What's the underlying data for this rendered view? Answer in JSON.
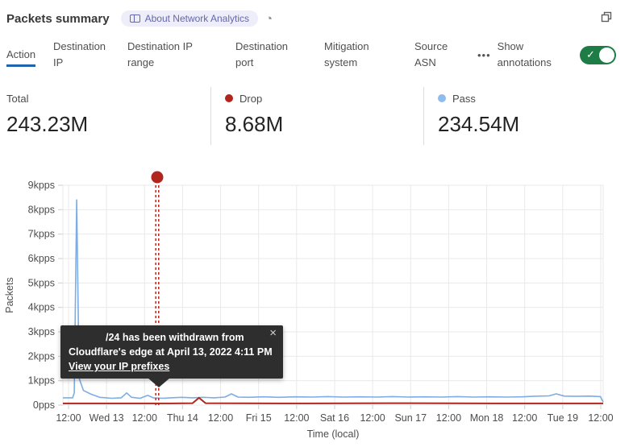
{
  "header": {
    "title": "Packets summary",
    "badge_label": "About Network Analytics",
    "pie_icon": "◔"
  },
  "tabs": {
    "items": [
      {
        "label": "Action",
        "active": true
      },
      {
        "label": "Destination IP",
        "active": false
      },
      {
        "label": "Destination IP range",
        "active": false
      },
      {
        "label": "Destination port",
        "active": false
      },
      {
        "label": "Mitigation system",
        "active": false
      },
      {
        "label": "Source ASN",
        "active": false
      }
    ],
    "more_label": "•••",
    "annotations_label": "Show annotations",
    "annotations_toggle_on": true,
    "toggle_color": "#1e7d46",
    "check_icon": "✓"
  },
  "stats": [
    {
      "label": "Total",
      "value": "243.23M",
      "dot_color": null
    },
    {
      "label": "Drop",
      "value": "8.68M",
      "dot_color": "#b2251c"
    },
    {
      "label": "Pass",
      "value": "234.54M",
      "dot_color": "#8fbced"
    }
  ],
  "tooltip": {
    "line1": "/24 has been withdrawn from",
    "line2": "Cloudflare's edge at April 13, 2022 4:11 PM",
    "link": "View your IP prefixes",
    "close_icon": "×"
  },
  "chart_data": {
    "type": "line",
    "ylabel": "Packets",
    "xlabel": "Time (local)",
    "unit": "kpps",
    "y_ticks": [
      "0pps",
      "1kpps",
      "2kpps",
      "3kpps",
      "4kpps",
      "5kpps",
      "6kpps",
      "7kpps",
      "8kpps",
      "9kpps"
    ],
    "y_max_kpps": 9,
    "x_ticks": [
      "12:00",
      "Wed 13",
      "12:00",
      "Thu 14",
      "12:00",
      "Fri 15",
      "12:00",
      "Sat 16",
      "12:00",
      "Sun 17",
      "12:00",
      "Mon 18",
      "12:00",
      "Tue 19",
      "12:00"
    ],
    "grid": true,
    "grid_color": "#e9e9e9",
    "axis_text_color": "#4d4d4d",
    "series": [
      {
        "name": "Pass",
        "color": "#7dade4",
        "width": 1.6,
        "points": [
          [
            0,
            0.3
          ],
          [
            0.018,
            0.3
          ],
          [
            0.021,
            0.5
          ],
          [
            0.0255,
            8.4
          ],
          [
            0.03,
            1.1
          ],
          [
            0.038,
            0.6
          ],
          [
            0.052,
            0.45
          ],
          [
            0.068,
            0.32
          ],
          [
            0.09,
            0.28
          ],
          [
            0.108,
            0.3
          ],
          [
            0.118,
            0.5
          ],
          [
            0.127,
            0.32
          ],
          [
            0.143,
            0.28
          ],
          [
            0.157,
            0.4
          ],
          [
            0.167,
            0.3
          ],
          [
            0.185,
            0.28
          ],
          [
            0.2,
            0.3
          ],
          [
            0.22,
            0.32
          ],
          [
            0.24,
            0.3
          ],
          [
            0.26,
            0.32
          ],
          [
            0.28,
            0.3
          ],
          [
            0.3,
            0.33
          ],
          [
            0.312,
            0.46
          ],
          [
            0.324,
            0.33
          ],
          [
            0.345,
            0.32
          ],
          [
            0.37,
            0.34
          ],
          [
            0.4,
            0.32
          ],
          [
            0.43,
            0.34
          ],
          [
            0.46,
            0.33
          ],
          [
            0.49,
            0.35
          ],
          [
            0.52,
            0.33
          ],
          [
            0.55,
            0.34
          ],
          [
            0.58,
            0.33
          ],
          [
            0.61,
            0.35
          ],
          [
            0.64,
            0.33
          ],
          [
            0.67,
            0.34
          ],
          [
            0.7,
            0.33
          ],
          [
            0.73,
            0.35
          ],
          [
            0.76,
            0.33
          ],
          [
            0.79,
            0.34
          ],
          [
            0.82,
            0.33
          ],
          [
            0.85,
            0.34
          ],
          [
            0.87,
            0.36
          ],
          [
            0.9,
            0.38
          ],
          [
            0.913,
            0.46
          ],
          [
            0.928,
            0.37
          ],
          [
            0.95,
            0.36
          ],
          [
            0.975,
            0.37
          ],
          [
            0.995,
            0.35
          ],
          [
            1,
            0.13
          ]
        ]
      },
      {
        "name": "Drop",
        "color": "#aa281d",
        "width": 2,
        "points": [
          [
            0,
            0.07
          ],
          [
            0.2,
            0.07
          ],
          [
            0.24,
            0.08
          ],
          [
            0.252,
            0.3
          ],
          [
            0.264,
            0.08
          ],
          [
            0.4,
            0.07
          ],
          [
            0.6,
            0.08
          ],
          [
            0.8,
            0.07
          ],
          [
            1,
            0.07
          ]
        ]
      }
    ],
    "annotation": {
      "x_frac": 0.1746,
      "color": "#b2251c",
      "date": "April 13, 2022 4:11 PM"
    }
  }
}
